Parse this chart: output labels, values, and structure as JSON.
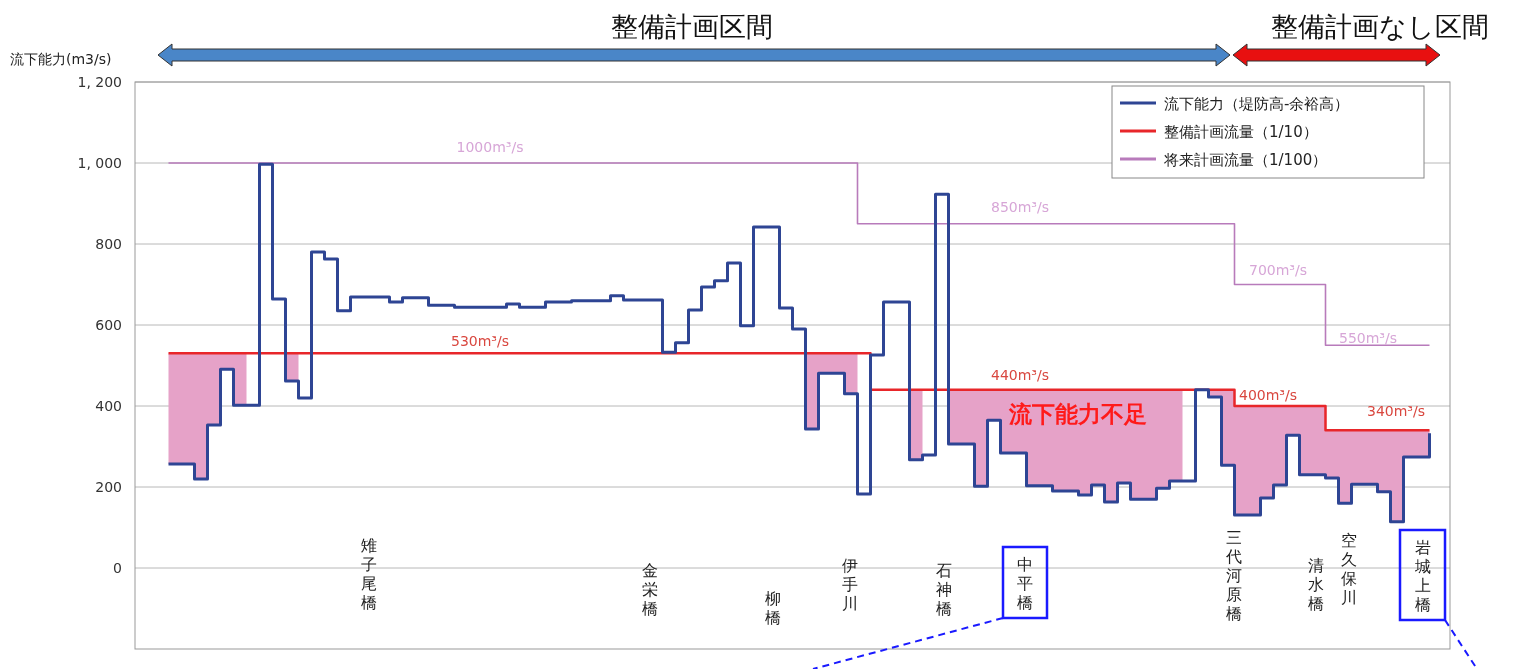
{
  "chart_data": {
    "type": "step",
    "ylabel": "流下能力(m3/s)",
    "categories": [
      null,
      null,
      null,
      null,
      null,
      null,
      null,
      null,
      null,
      null,
      null,
      null,
      null,
      null,
      null,
      null,
      null,
      null,
      null,
      null,
      null,
      null,
      null,
      null,
      null,
      null,
      null,
      null,
      null,
      null,
      null,
      null,
      null,
      null,
      null,
      null,
      null,
      null,
      null,
      null,
      null,
      null,
      null,
      null,
      null,
      null,
      null,
      null,
      null,
      null,
      null,
      null,
      null,
      null,
      null,
      null,
      null,
      null,
      null,
      null,
      null,
      null,
      null,
      null,
      null,
      null,
      null,
      null,
      null,
      null,
      null,
      null,
      null,
      null,
      null,
      null,
      null,
      null,
      null,
      null,
      null,
      null,
      null,
      null,
      null,
      null,
      null,
      null,
      null,
      null,
      null,
      null,
      null,
      null,
      null,
      null,
      null,
      null
    ],
    "ylim": [
      -200,
      1200
    ],
    "yticks": [
      {
        "value": 1200,
        "label": "1, 200"
      },
      {
        "value": 1000,
        "label": "1, 000"
      },
      800,
      600,
      400,
      200,
      0
    ],
    "grid": "y",
    "legend": "top right",
    "series": [
      {
        "name": "流下能力（堤防高-余裕高）",
        "color": "#2e4594",
        "values": [
          257,
          257,
          220,
          353,
          491,
          402,
          402,
          997,
          664,
          462,
          420,
          780,
          763,
          635,
          669,
          669,
          669,
          657,
          667,
          667,
          649,
          649,
          644,
          644,
          644,
          644,
          652,
          644,
          644,
          657,
          657,
          660,
          660,
          660,
          672,
          662,
          662,
          662,
          533,
          556,
          637,
          694,
          709,
          753,
          598,
          842,
          842,
          642,
          590,
          343,
          481,
          481,
          430,
          183,
          526,
          657,
          657,
          267,
          279,
          923,
          306,
          306,
          202,
          365,
          284,
          284,
          203,
          203,
          190,
          190,
          180,
          205,
          163,
          210,
          170,
          170,
          197,
          215,
          215,
          440,
          422,
          254,
          131,
          131,
          173,
          205,
          328,
          230,
          230,
          222,
          160,
          207,
          207,
          188,
          114,
          274,
          274,
          333
        ]
      },
      {
        "name": "整備計画流量（1/10）",
        "color": "#e8262a",
        "values": [
          530,
          530,
          530,
          530,
          530,
          530,
          530,
          530,
          530,
          530,
          530,
          530,
          530,
          530,
          530,
          530,
          530,
          530,
          530,
          530,
          530,
          530,
          530,
          530,
          530,
          530,
          530,
          530,
          530,
          530,
          530,
          530,
          530,
          530,
          530,
          530,
          530,
          530,
          530,
          530,
          530,
          530,
          530,
          530,
          530,
          530,
          530,
          530,
          530,
          530,
          530,
          530,
          530,
          530,
          440,
          440,
          440,
          440,
          440,
          440,
          440,
          440,
          440,
          440,
          440,
          440,
          440,
          440,
          440,
          440,
          440,
          440,
          440,
          440,
          440,
          440,
          440,
          440,
          440,
          440,
          440,
          440,
          400,
          400,
          400,
          400,
          400,
          400,
          400,
          340,
          340,
          340,
          340,
          340,
          340,
          340,
          340,
          340
        ]
      },
      {
        "name": "将来計画流量（1/100）",
        "color": "#b87bbb",
        "values": [
          1000,
          1000,
          1000,
          1000,
          1000,
          1000,
          1000,
          1000,
          1000,
          1000,
          1000,
          1000,
          1000,
          1000,
          1000,
          1000,
          1000,
          1000,
          1000,
          1000,
          1000,
          1000,
          1000,
          1000,
          1000,
          1000,
          1000,
          1000,
          1000,
          1000,
          1000,
          1000,
          1000,
          1000,
          1000,
          1000,
          1000,
          1000,
          1000,
          1000,
          1000,
          1000,
          1000,
          1000,
          1000,
          1000,
          1000,
          1000,
          1000,
          1000,
          1000,
          1000,
          1000,
          850,
          850,
          850,
          850,
          850,
          850,
          850,
          850,
          850,
          850,
          850,
          850,
          850,
          850,
          850,
          850,
          850,
          850,
          850,
          850,
          850,
          850,
          850,
          850,
          850,
          850,
          850,
          850,
          850,
          700,
          700,
          700,
          700,
          700,
          700,
          700,
          550,
          550,
          550,
          550,
          550,
          550,
          550,
          550,
          550
        ]
      },
      {
        "type": "area",
        "color": "#e6a2c8",
        "values": [
          530,
          530,
          530,
          530,
          530,
          530,
          530,
          null,
          null,
          530,
          530,
          null,
          null,
          null,
          null,
          null,
          null,
          null,
          null,
          null,
          null,
          null,
          null,
          null,
          null,
          null,
          null,
          null,
          null,
          null,
          null,
          null,
          null,
          null,
          null,
          null,
          null,
          null,
          null,
          null,
          null,
          null,
          null,
          null,
          null,
          null,
          null,
          null,
          null,
          530,
          530,
          530,
          530,
          530,
          null,
          null,
          null,
          440,
          440,
          null,
          440,
          440,
          440,
          440,
          440,
          440,
          440,
          440,
          440,
          440,
          440,
          440,
          440,
          440,
          440,
          440,
          440,
          440,
          440,
          null,
          440,
          440,
          400,
          400,
          400,
          400,
          400,
          400,
          400,
          340,
          340,
          340,
          340,
          340,
          340,
          340,
          340,
          340
        ]
      }
    ],
    "annotations": [
      "整備計画区間",
      "整備計画なし区間",
      "1000m³/s",
      "850m³/s",
      "700m³/s",
      "550m³/s",
      "530m³/s",
      "440m³/s",
      "400m³/s",
      "340m³/s",
      "流下能力不足",
      "雉子尾橋",
      "金栄橋",
      "柳橋",
      "伊手川",
      "石神橋",
      "中平橋",
      "三代河原橋",
      "清水橋",
      "空久保川",
      "岩城上橋"
    ]
  }
}
